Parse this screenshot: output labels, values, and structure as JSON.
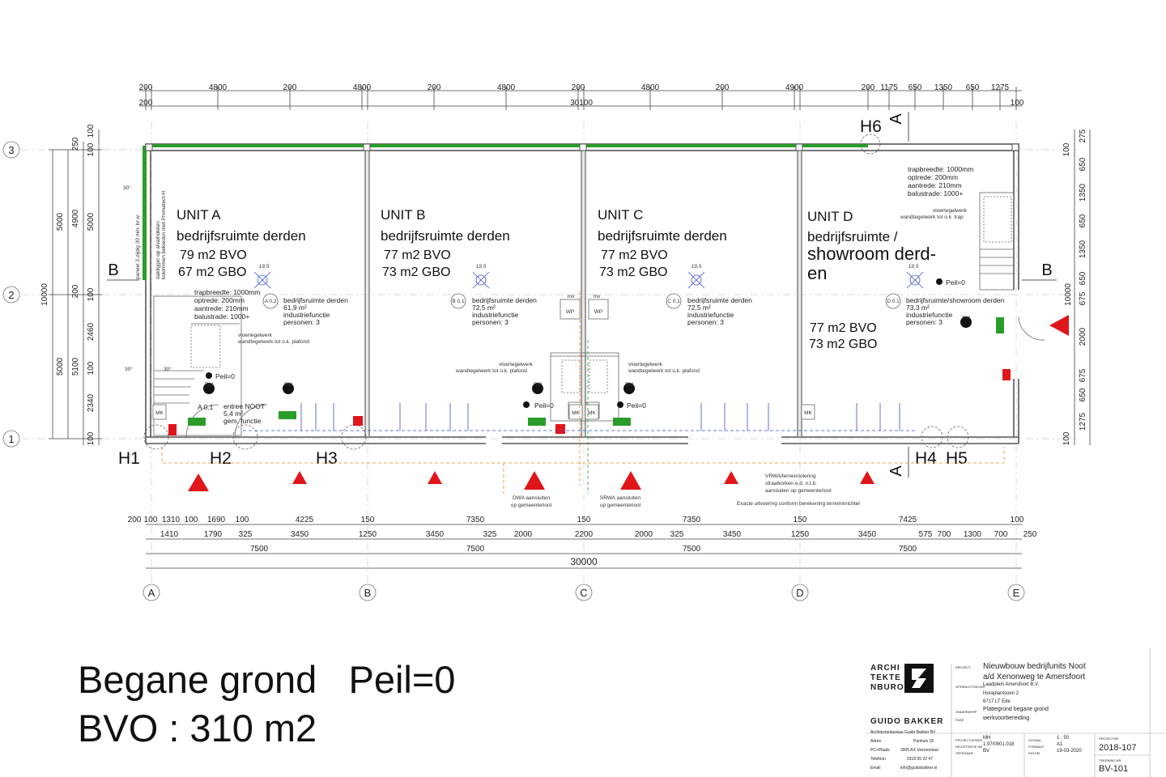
{
  "top_dims_row1": [
    "200",
    "4800",
    "200",
    "4800",
    "200",
    "4800",
    "200",
    "4800",
    "200",
    "4900",
    "200",
    "1175",
    "650",
    "1350",
    "650",
    "1275"
  ],
  "top_dims_row2": [
    "200",
    "30100",
    "100"
  ],
  "bottom_dims_row1": [
    "200",
    "100",
    "1310",
    "100",
    "1690",
    "100",
    "4225",
    "150",
    "7350",
    "150",
    "7350",
    "150",
    "7425",
    "100"
  ],
  "bottom_dims_row2": [
    "1410",
    "1790",
    "325",
    "3450",
    "1250",
    "3450",
    "325",
    "2000",
    "2200",
    "2000",
    "325",
    "3450",
    "1250",
    "3450",
    "575",
    "700",
    "1300",
    "700",
    "250"
  ],
  "bottom_dims_row3": [
    "7500",
    "7500",
    "7500",
    "7500"
  ],
  "bottom_total": "30000",
  "left_dims_a": [
    "5000",
    "5000"
  ],
  "left_total": "10000",
  "left_dims_b": [
    "250",
    "4900",
    "200",
    "2460",
    "5100",
    "2340"
  ],
  "left_dims_c": [
    "100",
    "100",
    "5000",
    "100",
    "100",
    "100"
  ],
  "right_dims_a": [
    "275",
    "100",
    "650",
    "1350",
    "650",
    "1350",
    "650",
    "675",
    "2000",
    "675",
    "650",
    "1275",
    "100"
  ],
  "right_total": "10000",
  "grid_rows": [
    "3",
    "2",
    "1"
  ],
  "grid_cols": [
    "A",
    "B",
    "C",
    "D",
    "E"
  ],
  "section_marks": {
    "b_left": "B",
    "b_right": "B",
    "a_top": "A",
    "a_bottom": "A",
    "h6": "H6"
  },
  "column_marks": [
    "H1",
    "H2",
    "H3",
    "H4",
    "H5"
  ],
  "units": [
    {
      "title": "UNIT A",
      "func": "bedrijfsruimte derden",
      "bvo": "79 m2 BVO",
      "gbo": "67 m2 GBO"
    },
    {
      "title": "UNIT B",
      "func": "bedrijfsruimte derden",
      "bvo": "77 m2 BVO",
      "gbo": "73 m2 GBO"
    },
    {
      "title": "UNIT C",
      "func": "bedrijfsruimte derden",
      "bvo": "77 m2 BVO",
      "gbo": "73 m2 GBO"
    },
    {
      "title": "UNIT D",
      "func": "bedrijfsruimte /",
      "func2": "showroom derd-",
      "func3": "en",
      "bvo": "77 m2 BVO",
      "gbo": "73 m2 GBO"
    }
  ],
  "room_tags": [
    {
      "code": "A 0.2",
      "l1": "bedrijfsruimte derden",
      "l2": "61,9      m²",
      "l3": "industriefunctie",
      "l4": "personen:  3"
    },
    {
      "code": "B 0.1",
      "l1": "bedrijfsruimte derden",
      "l2": "72,5      m²",
      "l3": "industriefunctie",
      "l4": "personen:  3"
    },
    {
      "code": "C 0.1",
      "l1": "bedrijfsruimte derden",
      "l2": "72,5      m²",
      "l3": "industriefunctie",
      "l4": "personen:  3"
    },
    {
      "code": "D 0.1",
      "l1": "bedrijfsruimte/showroom derden",
      "l2": "73,3      m²",
      "l3": "industriefunctie",
      "l4": "personen:  3"
    },
    {
      "code": "A 0.1",
      "l1": "entree NOOT",
      "l2": "5,4       m²",
      "l3": "gem. functie",
      "l4": ""
    }
  ],
  "stair_a": [
    "trapbreedte: 1000mm",
    "optrede:      200mm",
    "aantrede:     210mm",
    "balustrade:   1000+"
  ],
  "stair_d": [
    "trapbreedte: 1000mm",
    "optrede:      200mm",
    "aantrede:     210mm",
    "balustrade:   1000+"
  ],
  "notes": {
    "tile_a1": "vloertegelwerk",
    "tile_a2": "wandtegelwerk tot o.k. plafond",
    "tile_bc1": "vloertegelwerk",
    "tile_bc2": "wandtegelwerk tot o.k. plafond",
    "tile_cc1": "vloertegelwerk",
    "tile_cc2": "wandtegelwerk tot o.k. plafond",
    "tile_d1": "vloertegelwerk",
    "tile_d2": "wandtegelwerk tot o.k. trap",
    "peil": "Peil=0",
    "mk": "MK",
    "wp": "WP",
    "mv": "mv",
    "rm": "RM",
    "rating": "19,5",
    "fire_note_1": "paneel 2-zijdig 30 min. br.w.",
    "fire_note_2": "dakligger op afvalhokken",
    "fire_note_3": "kolommen bekleden met Promatect-H",
    "angle": "30°",
    "dwa1": "DWA aansluiten",
    "dwa2": "op gemeenteriool",
    "srwa1": "SRWA aansluiten",
    "srwa2": "op gemeenteriool",
    "vrwa1": "VRWA/terreinriolering",
    "vrwa2": "straatkolken e.d. n.t.b.",
    "vrwa3": "aansluiten op gemeenteriool",
    "exact": "Exacte uitvoering conform berekening terreininrichter"
  },
  "caption": {
    "line1": "Begane grond   Peil=0",
    "line2": "BVO : 310 m2"
  },
  "titleblock": {
    "logo_l1": "ARCHI",
    "logo_l2": "TEKTE",
    "logo_l3": "NBURO",
    "firm": "GUIDO BAKKER",
    "firm_sub": "Architectenbureau Guido Bakker BV",
    "addr_label": "Adres",
    "addr": "Panhuis 18",
    "pc_label": "PC+Plaats",
    "pc": "3905 AX Veenendaal",
    "tel_label": "Telefoon",
    "tel": "0318 55 22 47",
    "email_label": "Email",
    "email": "info@guidobakker.nl",
    "project_label": "PROJECT",
    "project_1": "Nieuwbouw bedrijfunits Noot",
    "project_2": "a/d Xenonweg te Amersfoort",
    "client_label": "OPDRACHTGEVER",
    "client_1": "Laadplein Amersfoort B.V.",
    "client_2": "Horaplantsoen 2",
    "client_3": "6717 LT Ede",
    "subject_label": "ONDERWERP",
    "subject": "Plattegrond begane grond",
    "phase_label": "FASE",
    "phase": "werkvoorbereiding",
    "drawn_label": "PROJECTLEIDER",
    "drawn": "MH",
    "reg_label": "REGISTRATIE NR",
    "reg": "1.97/0901.018",
    "drawer_label": "TEKENAAR",
    "drawer": "BV",
    "scale_label": "SCHAAL",
    "scale": "1 : 50",
    "format_label": "FORMAAT",
    "format": "A1",
    "date_label": "DATUM",
    "date": "19-03-2020",
    "projnr_label": "PROJECTNR",
    "projnr": "2018-107",
    "sheet_label": "TEKENING NR",
    "sheet": "BV-101"
  },
  "colors": {
    "green": "#2a9c2a",
    "red": "#e0161b",
    "blue": "#3a4fd0",
    "orange": "#f08a24",
    "grid": "#c9c9c9",
    "wall": "#555555"
  }
}
